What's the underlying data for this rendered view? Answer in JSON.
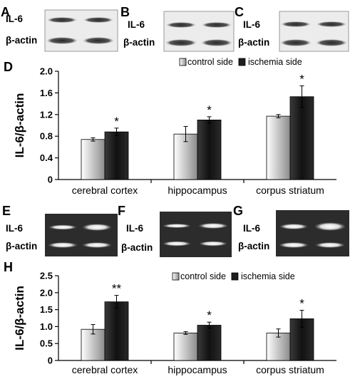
{
  "panels": {
    "A": "A",
    "B": "B",
    "C": "C",
    "D": "D",
    "E": "E",
    "F": "F",
    "G": "G",
    "H": "H"
  },
  "blot_labels": {
    "target": "IL-6",
    "control": "β-actin"
  },
  "colors": {
    "control_bar_light": "#ffffff",
    "control_bar_dark": "#8c8c8c",
    "ischemia_bar": "#1e1e1e",
    "western_background": "#ececec",
    "pcr_background": "#2c2c2c"
  },
  "chart_data": [
    {
      "panel": "D",
      "type": "bar",
      "categories": [
        "cerebral cortex",
        "hippocampus",
        "corpus striatum"
      ],
      "ylabel": "IL-6/β-actin",
      "ylim": [
        0,
        2.0
      ],
      "yticks": [
        "0",
        "0.4",
        "0.8",
        "1.2",
        "1.6",
        "2.0"
      ],
      "legend_position": "top-right",
      "series": [
        {
          "name": "control side",
          "values": [
            0.74,
            0.84,
            1.17
          ],
          "errors": [
            0.03,
            0.14,
            0.03
          ]
        },
        {
          "name": "ischemia side",
          "values": [
            0.88,
            1.1,
            1.53
          ],
          "errors": [
            0.07,
            0.06,
            0.2
          ]
        }
      ],
      "significance": [
        "*",
        "*",
        "*"
      ]
    },
    {
      "panel": "H",
      "type": "bar",
      "categories": [
        "cerebral cortex",
        "hippocampus",
        "corpus striatum"
      ],
      "ylabel": "IL-6/β-actin",
      "ylim": [
        0,
        2.5
      ],
      "yticks": [
        "0",
        "0.5",
        "1.0",
        "1.5",
        "2.0",
        "2.5"
      ],
      "legend_position": "top-right",
      "series": [
        {
          "name": "control side",
          "values": [
            0.92,
            0.81,
            0.81
          ],
          "errors": [
            0.14,
            0.04,
            0.12
          ]
        },
        {
          "name": "ischemia side",
          "values": [
            1.73,
            1.04,
            1.23
          ],
          "errors": [
            0.19,
            0.09,
            0.25
          ]
        }
      ],
      "significance": [
        "**",
        "*",
        "*"
      ]
    }
  ]
}
